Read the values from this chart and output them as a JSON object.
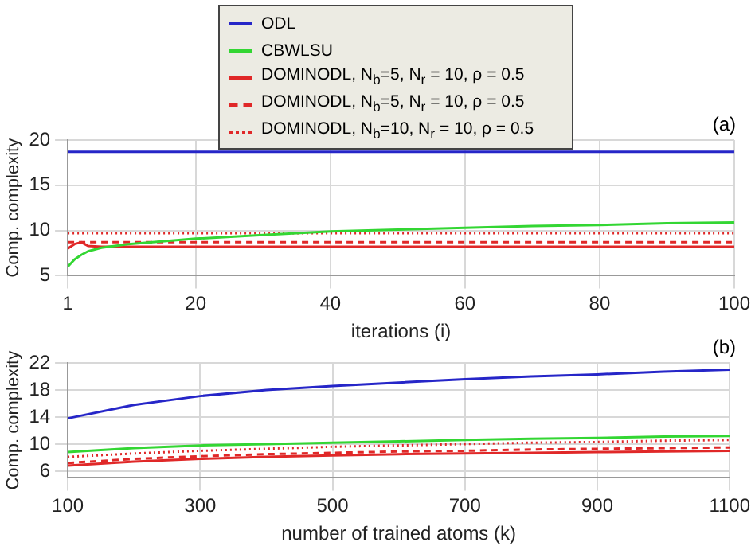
{
  "chart_data": [
    {
      "type": "line",
      "annotations": [
        "(a)"
      ],
      "xlabel": "iterations (i)",
      "ylabel": "Comp. complexity",
      "legend": "top",
      "grid": true,
      "x": [
        1,
        2,
        3,
        4,
        6,
        10,
        15,
        20,
        30,
        40,
        50,
        60,
        70,
        80,
        90,
        100
      ],
      "xlim": [
        1,
        100
      ],
      "xticks": [
        1,
        20,
        40,
        60,
        80,
        100
      ],
      "ylim": [
        5,
        20
      ],
      "yticks": [
        5,
        10,
        15,
        20
      ],
      "series": [
        {
          "name": "ODL",
          "color": "#2626c8",
          "line_style": "solid",
          "values": [
            18.7,
            18.7,
            18.7,
            18.7,
            18.7,
            18.7,
            18.7,
            18.7,
            18.7,
            18.7,
            18.7,
            18.7,
            18.7,
            18.7,
            18.7,
            18.7
          ]
        },
        {
          "name": "CBWLSU",
          "color": "#33d633",
          "line_style": "solid",
          "values": [
            6.0,
            6.8,
            7.3,
            7.7,
            8.1,
            8.5,
            8.8,
            9.1,
            9.5,
            9.9,
            10.1,
            10.3,
            10.5,
            10.6,
            10.8,
            10.9
          ]
        },
        {
          "name": "DOMINODL, N$_{b}$=5, N$_{r}$ = 10, ρ = 0.5",
          "color": "#e02828",
          "line_style": "solid",
          "values": [
            8.0,
            8.5,
            8.7,
            8.3,
            8.2,
            8.2,
            8.2,
            8.2,
            8.2,
            8.2,
            8.2,
            8.2,
            8.2,
            8.2,
            8.2,
            8.2
          ]
        },
        {
          "name": "DOMINODL, N$_{b}$=5, N$_{r}$ = 10, ρ = 0.5",
          "color": "#e02828",
          "line_style": "dashed",
          "values": [
            8.7,
            8.7,
            8.7,
            8.7,
            8.7,
            8.7,
            8.7,
            8.7,
            8.7,
            8.7,
            8.7,
            8.7,
            8.7,
            8.7,
            8.7,
            8.7
          ]
        },
        {
          "name": "DOMINODL, N$_{b}$=10, N$_{r}$ = 10, ρ = 0.5",
          "color": "#e02828",
          "line_style": "dotted",
          "values": [
            9.7,
            9.7,
            9.7,
            9.7,
            9.7,
            9.7,
            9.7,
            9.7,
            9.7,
            9.7,
            9.7,
            9.7,
            9.7,
            9.7,
            9.7,
            9.7
          ]
        }
      ]
    },
    {
      "type": "line",
      "annotations": [
        "(b)"
      ],
      "xlabel": "number of trained atoms (k)",
      "ylabel": "Comp. complexity",
      "grid": true,
      "x": [
        100,
        200,
        300,
        400,
        500,
        600,
        700,
        800,
        900,
        1000,
        1100
      ],
      "xlim": [
        100,
        1100
      ],
      "xticks": [
        100,
        300,
        500,
        700,
        900,
        1100
      ],
      "ylim": [
        5,
        22
      ],
      "yticks": [
        6,
        10,
        14,
        18,
        22
      ],
      "series": [
        {
          "color": "#2626c8",
          "line_style": "solid",
          "values": [
            13.8,
            15.8,
            17.1,
            18.0,
            18.6,
            19.1,
            19.6,
            20.0,
            20.3,
            20.7,
            21.0
          ]
        },
        {
          "color": "#33d633",
          "line_style": "solid",
          "values": [
            8.8,
            9.4,
            9.8,
            10.0,
            10.2,
            10.4,
            10.6,
            10.8,
            10.9,
            11.1,
            11.2
          ]
        },
        {
          "color": "#e02828",
          "line_style": "solid",
          "values": [
            6.8,
            7.4,
            7.8,
            8.1,
            8.3,
            8.5,
            8.6,
            8.7,
            8.8,
            8.9,
            9.0
          ]
        },
        {
          "color": "#e02828",
          "line_style": "dashed",
          "values": [
            7.2,
            7.8,
            8.2,
            8.5,
            8.7,
            8.9,
            9.0,
            9.2,
            9.3,
            9.4,
            9.5
          ]
        },
        {
          "color": "#e02828",
          "line_style": "dotted",
          "values": [
            8.1,
            8.6,
            9.0,
            9.3,
            9.6,
            9.8,
            10.0,
            10.2,
            10.3,
            10.5,
            10.6
          ]
        }
      ]
    }
  ]
}
